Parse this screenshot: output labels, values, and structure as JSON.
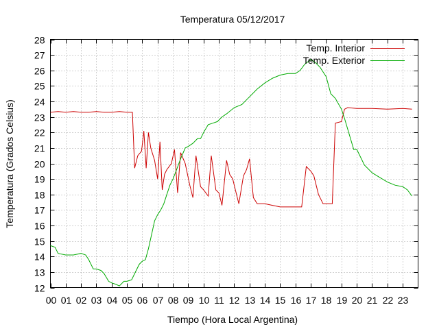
{
  "chart_data": {
    "type": "line",
    "title": "Temperatura 05/12/2017",
    "xlabel": "Tiempo (Hora Local Argentina)",
    "ylabel": "Temperatura (Grados Celsius)",
    "xlim": [
      0,
      23.6
    ],
    "ylim": [
      12,
      28
    ],
    "grid": true,
    "legend_position": "top-right",
    "x_ticks": [
      "00",
      "01",
      "02",
      "03",
      "04",
      "05",
      "06",
      "07",
      "08",
      "09",
      "10",
      "11",
      "12",
      "13",
      "14",
      "15",
      "16",
      "17",
      "18",
      "19",
      "20",
      "21",
      "22",
      "23"
    ],
    "y_ticks": [
      "12",
      "13",
      "14",
      "15",
      "16",
      "17",
      "18",
      "19",
      "20",
      "21",
      "22",
      "23",
      "24",
      "25",
      "26",
      "27",
      "28"
    ],
    "series": [
      {
        "name": "Temp. Interior",
        "color": "#cc0000",
        "x": [
          0.0,
          0.5,
          1.0,
          1.5,
          2.0,
          2.5,
          3.0,
          3.5,
          4.0,
          4.5,
          5.0,
          5.35,
          5.5,
          5.7,
          5.95,
          6.1,
          6.25,
          6.4,
          6.55,
          6.8,
          7.0,
          7.15,
          7.3,
          7.45,
          7.6,
          7.9,
          8.1,
          8.3,
          8.5,
          8.8,
          9.1,
          9.3,
          9.5,
          9.8,
          10.0,
          10.3,
          10.5,
          10.8,
          11.0,
          11.2,
          11.5,
          11.7,
          11.9,
          12.1,
          12.3,
          12.6,
          12.8,
          13.0,
          13.25,
          13.5,
          14.0,
          14.5,
          15.0,
          15.5,
          16.0,
          16.4,
          16.7,
          17.0,
          17.2,
          17.5,
          17.8,
          18.2,
          18.4,
          18.6,
          19.0,
          19.2,
          19.4,
          20.0,
          21.0,
          22.0,
          23.0,
          23.6
        ],
        "y": [
          23.3,
          23.35,
          23.3,
          23.35,
          23.3,
          23.3,
          23.35,
          23.3,
          23.3,
          23.35,
          23.3,
          23.3,
          19.7,
          20.5,
          20.8,
          22.1,
          19.7,
          22.0,
          21.0,
          20.2,
          19.0,
          21.4,
          18.3,
          19.3,
          19.6,
          20.0,
          20.9,
          18.1,
          20.7,
          20.0,
          18.6,
          17.8,
          20.5,
          18.5,
          18.3,
          17.9,
          20.5,
          18.3,
          18.1,
          17.3,
          20.2,
          19.3,
          19.0,
          18.2,
          17.4,
          19.2,
          19.6,
          20.3,
          17.8,
          17.4,
          17.4,
          17.3,
          17.2,
          17.2,
          17.2,
          17.2,
          19.8,
          19.5,
          19.2,
          18.0,
          17.4,
          17.4,
          17.4,
          22.6,
          22.7,
          23.5,
          23.6,
          23.55,
          23.55,
          23.5,
          23.55,
          23.5
        ]
      },
      {
        "name": "Temp. Exterior",
        "color": "#00aa00",
        "x": [
          0.0,
          0.3,
          0.5,
          1.0,
          1.5,
          2.0,
          2.3,
          2.5,
          2.8,
          3.0,
          3.3,
          3.5,
          3.8,
          4.0,
          4.3,
          4.5,
          4.8,
          5.0,
          5.3,
          5.5,
          5.8,
          6.0,
          6.2,
          6.4,
          6.6,
          6.8,
          7.0,
          7.2,
          7.4,
          7.6,
          7.8,
          8.0,
          8.2,
          8.5,
          8.8,
          9.0,
          9.3,
          9.6,
          9.8,
          10.0,
          10.3,
          10.6,
          10.9,
          11.2,
          11.5,
          12.0,
          12.5,
          13.0,
          13.5,
          14.0,
          14.5,
          15.0,
          15.5,
          16.0,
          16.3,
          16.6,
          17.0,
          17.3,
          17.6,
          18.0,
          18.3,
          18.6,
          19.0,
          19.2,
          19.5,
          19.8,
          20.0,
          20.5,
          21.0,
          21.5,
          22.0,
          22.5,
          23.0,
          23.3,
          23.6
        ],
        "y": [
          14.7,
          14.6,
          14.2,
          14.1,
          14.1,
          14.2,
          14.1,
          13.8,
          13.2,
          13.2,
          13.1,
          12.9,
          12.4,
          12.3,
          12.2,
          12.1,
          12.4,
          12.4,
          12.5,
          12.9,
          13.5,
          13.7,
          13.8,
          14.5,
          15.4,
          16.3,
          16.7,
          17.0,
          17.4,
          18.0,
          18.6,
          19.0,
          19.5,
          20.3,
          21.0,
          21.1,
          21.3,
          21.6,
          21.6,
          22.0,
          22.5,
          22.6,
          22.7,
          23.0,
          23.2,
          23.6,
          23.8,
          24.3,
          24.8,
          25.2,
          25.5,
          25.7,
          25.8,
          25.8,
          26.0,
          26.4,
          26.7,
          26.5,
          26.2,
          25.6,
          24.5,
          24.2,
          23.5,
          22.9,
          21.9,
          20.9,
          20.9,
          19.9,
          19.4,
          19.1,
          18.8,
          18.6,
          18.5,
          18.3,
          17.9
        ]
      }
    ]
  }
}
